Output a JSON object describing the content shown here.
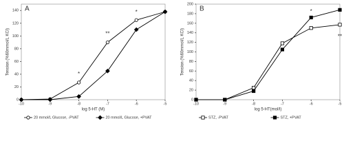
{
  "chart_data": [
    {
      "type": "line",
      "panel_label": "A",
      "x_label": "log 5-HT (M)",
      "y_label": "Tension (%60mmol/L KCl)",
      "x": [
        -10,
        -9,
        -8,
        -7,
        -6,
        -5
      ],
      "xlim": [
        -10,
        -5
      ],
      "xticks": [
        -10,
        -9,
        -8,
        -7,
        -6,
        -5
      ],
      "ylim": [
        0,
        150
      ],
      "yticks": [
        0,
        20,
        40,
        60,
        80,
        100,
        120,
        140
      ],
      "series": [
        {
          "name": "20 mmol/L Glucose, -PVAT",
          "color": "#000000",
          "marker": "circle",
          "filled": false,
          "values": [
            0,
            1,
            27,
            90,
            125,
            138
          ]
        },
        {
          "name": "20 mmol/L Glucose, +PVAT",
          "color": "#000000",
          "marker": "diamond",
          "filled": true,
          "values": [
            0,
            0,
            5,
            45,
            110,
            138
          ]
        }
      ],
      "annotations": [
        {
          "text": "*",
          "x": -8,
          "y": 40
        },
        {
          "text": "**",
          "x": -7,
          "y": 103
        },
        {
          "text": "*",
          "x": -6,
          "y": 137
        }
      ]
    },
    {
      "type": "line",
      "panel_label": "B",
      "x_label": "log 5-HT(mol/l)",
      "y_label": "Tension (%60mmol/L KCl)",
      "x": [
        -10,
        -9,
        -8,
        -7,
        -6,
        -5
      ],
      "xlim": [
        -10,
        -5
      ],
      "xticks": [
        -10,
        -9,
        -8,
        -7,
        -6,
        -5
      ],
      "ylim": [
        0,
        200
      ],
      "yticks": [
        0,
        20,
        40,
        60,
        80,
        100,
        120,
        140,
        160,
        180,
        200
      ],
      "series": [
        {
          "name": "STZ, -PVAT",
          "color": "#000000",
          "marker": "square",
          "filled": false,
          "values": [
            0,
            0,
            25,
            118,
            150,
            157
          ]
        },
        {
          "name": "STZ, +PVAT",
          "color": "#000000",
          "marker": "square",
          "filled": true,
          "values": [
            0,
            0,
            18,
            105,
            172,
            188
          ]
        }
      ],
      "annotations": [
        {
          "text": "*",
          "x": -6,
          "y": 184
        },
        {
          "text": "**",
          "x": -5,
          "y": 132
        }
      ]
    }
  ]
}
